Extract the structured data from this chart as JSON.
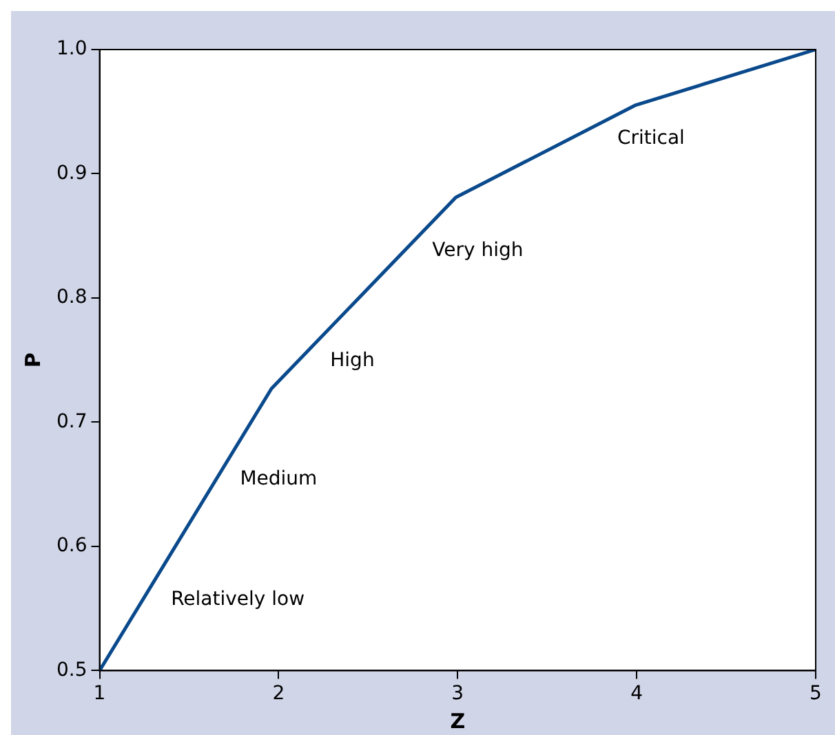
{
  "chart_data": {
    "type": "line",
    "xlabel": "Z",
    "ylabel": "P",
    "x": [
      1,
      1.96,
      2.99,
      3.99,
      5
    ],
    "series": [
      {
        "color": "#0a4a8c",
        "values": [
          0.5,
          0.727,
          0.881,
          0.955,
          1.0
        ]
      }
    ],
    "xlim": [
      1,
      5
    ],
    "xticks": [
      1,
      2,
      3,
      4,
      5
    ],
    "ylim": [
      0.5,
      1.0
    ],
    "yticks": [
      {
        "value": 0.5,
        "label": "0.5"
      },
      {
        "value": 0.6,
        "label": "0.6"
      },
      {
        "value": 0.7,
        "label": "0.7"
      },
      {
        "value": 0.8,
        "label": "0.8"
      },
      {
        "value": 0.9,
        "label": "0.9"
      },
      {
        "value": 1.0,
        "label": "1.0"
      }
    ],
    "grid": false,
    "legend": false,
    "marker": "none",
    "line_style": "solid",
    "annotations": [
      "Relatively low",
      "Medium",
      "High",
      "Very high",
      "Critical"
    ]
  }
}
